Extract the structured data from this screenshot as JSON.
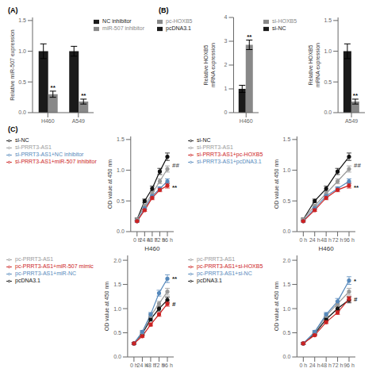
{
  "chart_data": [
    {
      "type": "bar",
      "title": "(A)",
      "categories": [
        "H460",
        "A549"
      ],
      "ylabel": "Relative miR-507 expression",
      "ylim": [
        0,
        1.55
      ],
      "yticks": [
        {
          "value": 0.0,
          "label": "0.0"
        },
        0.5,
        {
          "value": 1.0,
          "label": "1.0"
        },
        1.5
      ],
      "legend": "upper right",
      "series": [
        {
          "name": "NC inhibitor",
          "color": "#1a1a1a",
          "values": [
            1.0,
            1.0
          ],
          "errors": [
            0.12,
            0.08
          ]
        },
        {
          "name": "miR-507 inhibitor",
          "color": "#888888",
          "values": [
            0.3,
            0.18
          ],
          "errors": [
            0.05,
            0.04
          ]
        }
      ],
      "annotations": [
        {
          "text": "**",
          "series": "miR-507 inhibitor",
          "category": "H460"
        },
        {
          "text": "**",
          "series": "miR-507 inhibitor",
          "category": "A549"
        }
      ]
    },
    {
      "type": "bar",
      "title": "(B)",
      "categories": [
        "H460"
      ],
      "ylabel": "Relative HOXB5\nmRNA expression",
      "ylim": [
        0,
        4
      ],
      "yticks": [
        0,
        1,
        2,
        3,
        4
      ],
      "legend": "upper left",
      "series": [
        {
          "name": "pcDNA3.1",
          "color": "#1a1a1a",
          "values": [
            1.0
          ],
          "errors": [
            0.15
          ]
        },
        {
          "name": "pc-HOXB5",
          "color": "#888888",
          "values": [
            2.85
          ],
          "errors": [
            0.2
          ]
        }
      ],
      "annotations": [
        {
          "text": "**",
          "series": "pc-HOXB5",
          "category": "H460"
        }
      ]
    },
    {
      "type": "bar",
      "categories": [
        "A549"
      ],
      "ylabel": "Relative HOXB5\nmRNA expression",
      "ylim": [
        0,
        1.55
      ],
      "yticks": [
        {
          "value": 0.0,
          "label": "0.0"
        },
        0.5,
        {
          "value": 1.0,
          "label": "1.0"
        },
        1.5
      ],
      "legend": "upper left",
      "series": [
        {
          "name": "si-NC",
          "color": "#1a1a1a",
          "values": [
            1.0
          ],
          "errors": [
            0.12
          ]
        },
        {
          "name": "si-HOXB5",
          "color": "#888888",
          "values": [
            0.18
          ],
          "errors": [
            0.04
          ]
        }
      ],
      "annotations": [
        {
          "text": "**",
          "series": "si-HOXB5",
          "category": "A549"
        }
      ]
    },
    {
      "type": "line",
      "title": "(C)",
      "categories": [
        "0 h",
        "24 h",
        "48 h",
        "72 h",
        "96 h"
      ],
      "xlabel": "H460",
      "ylabel": "OD value at 450 nm",
      "ylim": [
        0,
        1.55
      ],
      "yticks": [
        {
          "value": 0.0,
          "label": "0.0"
        },
        0.5,
        {
          "value": 1.0,
          "label": "1.0"
        },
        1.5
      ],
      "legend": "upper left",
      "series": [
        {
          "name": "si-NC",
          "color": "#111111",
          "marker": "circle",
          "values": [
            0.2,
            0.5,
            0.7,
            0.98,
            1.22
          ],
          "errors": [
            0.02,
            0.03,
            0.04,
            0.05,
            0.06
          ]
        },
        {
          "name": "si-PRRT3-AS1",
          "color": "#999999",
          "marker": "circle",
          "values": [
            0.2,
            0.42,
            0.62,
            0.82,
            1.02
          ],
          "errors": [
            0.02,
            0.02,
            0.03,
            0.04,
            0.05
          ]
        },
        {
          "name": "si-PRRT3-AS1+NC inhibitor",
          "color": "#5588bb",
          "marker": "circle",
          "values": [
            0.17,
            0.38,
            0.58,
            0.7,
            0.82
          ],
          "errors": [
            0.02,
            0.02,
            0.03,
            0.03,
            0.04
          ]
        },
        {
          "name": "si-PRRT3-AS1+miR-507 inhibitor",
          "color": "#cc2222",
          "marker": "circle",
          "values": [
            0.17,
            0.35,
            0.55,
            0.68,
            0.75
          ],
          "errors": [
            0.01,
            0.02,
            0.03,
            0.03,
            0.04
          ]
        }
      ],
      "annotations": [
        {
          "text": "##",
          "category": "96 h",
          "y": 1.08,
          "color": "#555555"
        },
        {
          "text": "**",
          "category": "96 h",
          "y": 0.72,
          "color": "#111111"
        }
      ]
    },
    {
      "type": "line",
      "categories": [
        "0 h",
        "24 h",
        "48 h",
        "72 h",
        "96 h"
      ],
      "xlabel": "H460",
      "ylabel": "OD value at 450 nm",
      "ylim": [
        0,
        1.55
      ],
      "yticks": [
        {
          "value": 0.0,
          "label": "0.0"
        },
        0.5,
        {
          "value": 1.0,
          "label": "1.0"
        },
        1.5
      ],
      "legend": "upper left",
      "series": [
        {
          "name": "si-NC",
          "color": "#111111",
          "marker": "circle",
          "values": [
            0.2,
            0.5,
            0.7,
            0.98,
            1.22
          ],
          "errors": [
            0.02,
            0.03,
            0.04,
            0.05,
            0.06
          ]
        },
        {
          "name": "si-PRRT3-AS1",
          "color": "#999999",
          "marker": "circle",
          "values": [
            0.2,
            0.42,
            0.62,
            0.82,
            1.02
          ],
          "errors": [
            0.02,
            0.02,
            0.03,
            0.04,
            0.05
          ]
        },
        {
          "name": "si-PRRT3-AS1+pcDNA3.1",
          "color": "#5588bb",
          "marker": "circle",
          "values": [
            0.17,
            0.38,
            0.58,
            0.7,
            0.82
          ],
          "errors": [
            0.02,
            0.02,
            0.03,
            0.03,
            0.04
          ]
        },
        {
          "name": "si-PRRT3-AS1+pc-HOXB5",
          "color": "#cc2222",
          "marker": "circle",
          "values": [
            0.17,
            0.35,
            0.55,
            0.68,
            0.75
          ],
          "errors": [
            0.01,
            0.02,
            0.03,
            0.03,
            0.04
          ]
        }
      ],
      "annotations": [
        {
          "text": "##",
          "category": "96 h",
          "y": 1.08,
          "color": "#555555"
        },
        {
          "text": "**",
          "category": "96 h",
          "y": 0.72,
          "color": "#111111"
        }
      ]
    },
    {
      "type": "line",
      "categories": [
        "0 h",
        "24 h",
        "48 h",
        "72 h",
        "96 h"
      ],
      "ylabel": "OD value at 450 nm",
      "ylim": [
        0,
        2.1
      ],
      "yticks": [
        {
          "value": 0.0,
          "label": "0.0"
        },
        0.5,
        {
          "value": 1.0,
          "label": "1.0"
        },
        1.5,
        {
          "value": 2.0,
          "label": "2.0"
        }
      ],
      "legend": "upper left",
      "series": [
        {
          "name": "pcDNA3.1",
          "color": "#111111",
          "marker": "circle",
          "values": [
            0.28,
            0.48,
            0.78,
            1.0,
            1.18
          ],
          "errors": [
            0.02,
            0.03,
            0.04,
            0.05,
            0.06
          ]
        },
        {
          "name": "pc-PRRT3-AS1",
          "color": "#999999",
          "marker": "circle",
          "values": [
            0.28,
            0.5,
            0.85,
            1.1,
            1.35
          ],
          "errors": [
            0.02,
            0.03,
            0.04,
            0.05,
            0.07
          ]
        },
        {
          "name": "pc-PRRT3-AS1+miR-NC",
          "color": "#5588bb",
          "marker": "circle",
          "values": [
            0.28,
            0.52,
            0.88,
            1.32,
            1.62
          ],
          "errors": [
            0.02,
            0.03,
            0.04,
            0.06,
            0.08
          ]
        },
        {
          "name": "pc-PRRT3-AS1+miR-507 mimic",
          "color": "#cc2222",
          "marker": "circle",
          "values": [
            0.28,
            0.43,
            0.67,
            0.88,
            1.1
          ],
          "errors": [
            0.02,
            0.02,
            0.03,
            0.04,
            0.05
          ]
        }
      ],
      "annotations": [
        {
          "text": "**",
          "category": "96 h",
          "y": 1.62,
          "color": "#111111"
        },
        {
          "text": "#",
          "category": "96 h",
          "y": 1.1,
          "color": "#111111"
        }
      ]
    },
    {
      "type": "line",
      "categories": [
        "0 h",
        "24 h",
        "48 h",
        "72 h",
        "96 h"
      ],
      "ylabel": "OD value at 450 nm",
      "ylim": [
        0,
        2.1
      ],
      "yticks": [
        {
          "value": 0.0,
          "label": "0.0"
        },
        0.5,
        {
          "value": 1.0,
          "label": "1.0"
        },
        1.5,
        {
          "value": 2.0,
          "label": "2.0"
        }
      ],
      "legend": "upper left",
      "series": [
        {
          "name": "pcDNA3.1",
          "color": "#111111",
          "marker": "circle",
          "values": [
            0.28,
            0.48,
            0.78,
            1.0,
            1.18
          ],
          "errors": [
            0.02,
            0.03,
            0.04,
            0.05,
            0.06
          ]
        },
        {
          "name": "pc-PRRT3-AS1",
          "color": "#999999",
          "marker": "circle",
          "values": [
            0.28,
            0.5,
            0.85,
            1.1,
            1.35
          ],
          "errors": [
            0.02,
            0.03,
            0.04,
            0.05,
            0.07
          ]
        },
        {
          "name": "pc-PRRT3-AS1+si-NC",
          "color": "#5588bb",
          "marker": "circle",
          "values": [
            0.28,
            0.52,
            0.88,
            1.15,
            1.58
          ],
          "errors": [
            0.02,
            0.03,
            0.04,
            0.06,
            0.08
          ]
        },
        {
          "name": "pc-PRRT3-AS1+si-HOXB5",
          "color": "#cc2222",
          "marker": "circle",
          "values": [
            0.28,
            0.45,
            0.72,
            0.92,
            1.2
          ],
          "errors": [
            0.02,
            0.02,
            0.03,
            0.04,
            0.05
          ]
        }
      ],
      "annotations": [
        {
          "text": "*",
          "category": "96 h",
          "y": 1.58,
          "color": "#111111"
        },
        {
          "text": "#",
          "category": "96 h",
          "y": 1.2,
          "color": "#111111"
        }
      ]
    }
  ]
}
